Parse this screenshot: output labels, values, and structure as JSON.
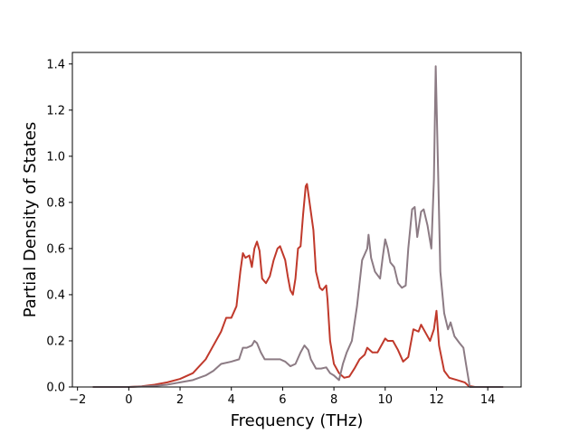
{
  "chart_data": {
    "type": "line",
    "title": "",
    "xlabel": "Frequency (THz)",
    "ylabel": "Partial Density of States",
    "xlim": [
      -2.2,
      15.3
    ],
    "ylim": [
      0,
      1.45
    ],
    "xticks": [
      -2,
      0,
      2,
      4,
      6,
      8,
      10,
      12,
      14
    ],
    "xtick_labels": [
      "−2",
      "0",
      "2",
      "4",
      "6",
      "8",
      "10",
      "12",
      "14"
    ],
    "yticks": [
      0.0,
      0.2,
      0.4,
      0.6,
      0.8,
      1.0,
      1.2,
      1.4
    ],
    "ytick_labels": [
      "0.0",
      "0.2",
      "0.4",
      "0.6",
      "0.8",
      "1.0",
      "1.2",
      "1.4"
    ],
    "grid": false,
    "legend": "none",
    "series": [
      {
        "color": "#c0392b",
        "points": [
          [
            -1.4,
            0
          ],
          [
            0,
            0.0
          ],
          [
            0.5,
            0.003
          ],
          [
            1.0,
            0.01
          ],
          [
            1.5,
            0.02
          ],
          [
            2.0,
            0.035
          ],
          [
            2.5,
            0.06
          ],
          [
            3.0,
            0.12
          ],
          [
            3.3,
            0.18
          ],
          [
            3.6,
            0.24
          ],
          [
            3.8,
            0.3
          ],
          [
            4.0,
            0.3
          ],
          [
            4.2,
            0.35
          ],
          [
            4.35,
            0.5
          ],
          [
            4.45,
            0.58
          ],
          [
            4.55,
            0.56
          ],
          [
            4.7,
            0.57
          ],
          [
            4.8,
            0.52
          ],
          [
            4.9,
            0.6
          ],
          [
            5.0,
            0.63
          ],
          [
            5.1,
            0.59
          ],
          [
            5.2,
            0.47
          ],
          [
            5.35,
            0.45
          ],
          [
            5.5,
            0.48
          ],
          [
            5.65,
            0.55
          ],
          [
            5.8,
            0.6
          ],
          [
            5.9,
            0.61
          ],
          [
            6.0,
            0.58
          ],
          [
            6.1,
            0.55
          ],
          [
            6.2,
            0.48
          ],
          [
            6.3,
            0.42
          ],
          [
            6.4,
            0.4
          ],
          [
            6.5,
            0.47
          ],
          [
            6.6,
            0.6
          ],
          [
            6.7,
            0.61
          ],
          [
            6.8,
            0.75
          ],
          [
            6.9,
            0.87
          ],
          [
            6.95,
            0.88
          ],
          [
            7.05,
            0.8
          ],
          [
            7.2,
            0.68
          ],
          [
            7.3,
            0.5
          ],
          [
            7.45,
            0.43
          ],
          [
            7.55,
            0.42
          ],
          [
            7.7,
            0.44
          ],
          [
            7.75,
            0.38
          ],
          [
            7.85,
            0.2
          ],
          [
            8.0,
            0.1
          ],
          [
            8.2,
            0.06
          ],
          [
            8.4,
            0.04
          ],
          [
            8.6,
            0.045
          ],
          [
            8.8,
            0.08
          ],
          [
            9.0,
            0.12
          ],
          [
            9.2,
            0.14
          ],
          [
            9.3,
            0.17
          ],
          [
            9.5,
            0.15
          ],
          [
            9.7,
            0.15
          ],
          [
            9.9,
            0.19
          ],
          [
            10.0,
            0.21
          ],
          [
            10.1,
            0.2
          ],
          [
            10.3,
            0.2
          ],
          [
            10.5,
            0.16
          ],
          [
            10.7,
            0.11
          ],
          [
            10.9,
            0.13
          ],
          [
            11.1,
            0.25
          ],
          [
            11.3,
            0.24
          ],
          [
            11.4,
            0.27
          ],
          [
            11.6,
            0.23
          ],
          [
            11.75,
            0.2
          ],
          [
            11.9,
            0.25
          ],
          [
            12.0,
            0.33
          ],
          [
            12.1,
            0.18
          ],
          [
            12.3,
            0.07
          ],
          [
            12.5,
            0.04
          ],
          [
            12.8,
            0.03
          ],
          [
            13.1,
            0.02
          ],
          [
            13.25,
            0.005
          ],
          [
            13.5,
            0
          ],
          [
            14.6,
            0
          ]
        ]
      },
      {
        "color": "#8c7b84",
        "points": [
          [
            -1.4,
            0
          ],
          [
            0,
            0.0
          ],
          [
            0.5,
            0.002
          ],
          [
            1.0,
            0.005
          ],
          [
            1.5,
            0.01
          ],
          [
            2.0,
            0.02
          ],
          [
            2.5,
            0.03
          ],
          [
            3.0,
            0.05
          ],
          [
            3.3,
            0.07
          ],
          [
            3.6,
            0.1
          ],
          [
            4.0,
            0.11
          ],
          [
            4.3,
            0.12
          ],
          [
            4.45,
            0.17
          ],
          [
            4.6,
            0.17
          ],
          [
            4.8,
            0.18
          ],
          [
            4.9,
            0.2
          ],
          [
            5.0,
            0.19
          ],
          [
            5.15,
            0.15
          ],
          [
            5.3,
            0.12
          ],
          [
            5.5,
            0.12
          ],
          [
            5.7,
            0.12
          ],
          [
            5.9,
            0.12
          ],
          [
            6.1,
            0.11
          ],
          [
            6.3,
            0.09
          ],
          [
            6.5,
            0.1
          ],
          [
            6.7,
            0.15
          ],
          [
            6.85,
            0.18
          ],
          [
            7.0,
            0.16
          ],
          [
            7.1,
            0.12
          ],
          [
            7.3,
            0.08
          ],
          [
            7.5,
            0.08
          ],
          [
            7.7,
            0.085
          ],
          [
            7.85,
            0.06
          ],
          [
            8.0,
            0.05
          ],
          [
            8.2,
            0.03
          ],
          [
            8.35,
            0.1
          ],
          [
            8.5,
            0.15
          ],
          [
            8.7,
            0.2
          ],
          [
            8.9,
            0.35
          ],
          [
            9.1,
            0.55
          ],
          [
            9.3,
            0.6
          ],
          [
            9.35,
            0.66
          ],
          [
            9.45,
            0.56
          ],
          [
            9.6,
            0.5
          ],
          [
            9.8,
            0.47
          ],
          [
            9.9,
            0.56
          ],
          [
            10.0,
            0.64
          ],
          [
            10.1,
            0.6
          ],
          [
            10.2,
            0.54
          ],
          [
            10.35,
            0.52
          ],
          [
            10.5,
            0.45
          ],
          [
            10.65,
            0.43
          ],
          [
            10.8,
            0.44
          ],
          [
            10.9,
            0.6
          ],
          [
            11.05,
            0.77
          ],
          [
            11.15,
            0.78
          ],
          [
            11.25,
            0.65
          ],
          [
            11.4,
            0.76
          ],
          [
            11.5,
            0.77
          ],
          [
            11.65,
            0.7
          ],
          [
            11.8,
            0.6
          ],
          [
            11.9,
            0.9
          ],
          [
            11.97,
            1.39
          ],
          [
            12.05,
            1.0
          ],
          [
            12.15,
            0.5
          ],
          [
            12.3,
            0.32
          ],
          [
            12.45,
            0.25
          ],
          [
            12.55,
            0.28
          ],
          [
            12.7,
            0.22
          ],
          [
            12.9,
            0.19
          ],
          [
            13.05,
            0.17
          ],
          [
            13.15,
            0.1
          ],
          [
            13.3,
            0.0
          ],
          [
            14.6,
            0
          ]
        ]
      }
    ]
  }
}
